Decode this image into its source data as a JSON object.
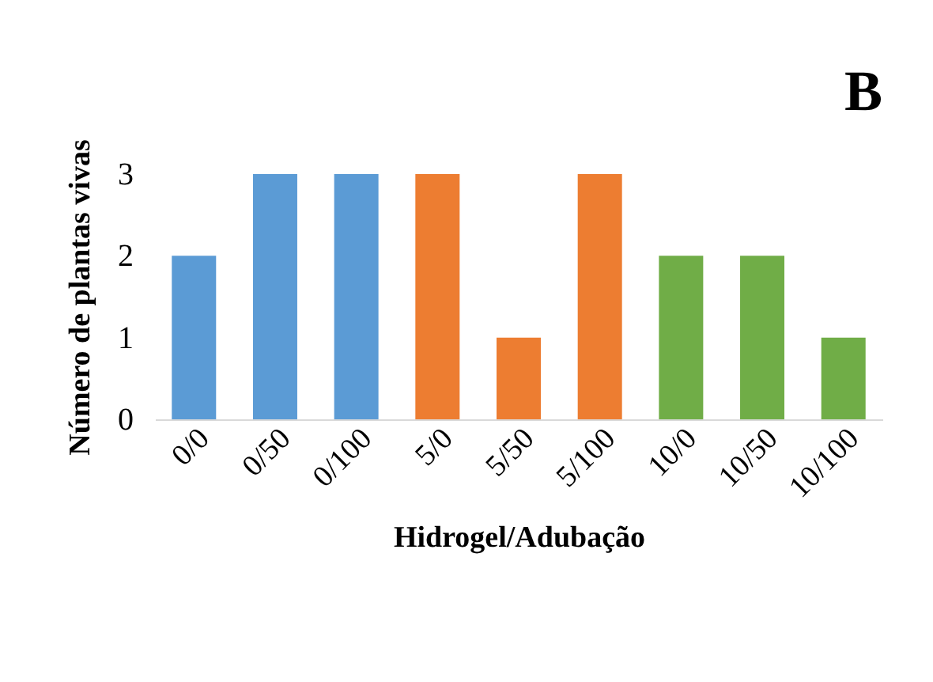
{
  "chart_data": {
    "type": "bar",
    "title": "B",
    "xlabel": "Hidrogel/Adubação",
    "ylabel": "Número de plantas vivas",
    "categories": [
      "0/0",
      "0/50",
      "0/100",
      "5/0",
      "5/50",
      "5/100",
      "10/0",
      "10/50",
      "10/100"
    ],
    "values": [
      2,
      3,
      3,
      3,
      1,
      3,
      2,
      2,
      1
    ],
    "colors": [
      "#5b9bd5",
      "#5b9bd5",
      "#5b9bd5",
      "#ed7d31",
      "#ed7d31",
      "#ed7d31",
      "#70ad47",
      "#70ad47",
      "#70ad47"
    ],
    "ylim": [
      0,
      3
    ],
    "yticks": [
      0,
      1,
      2,
      3
    ],
    "grid": false
  }
}
